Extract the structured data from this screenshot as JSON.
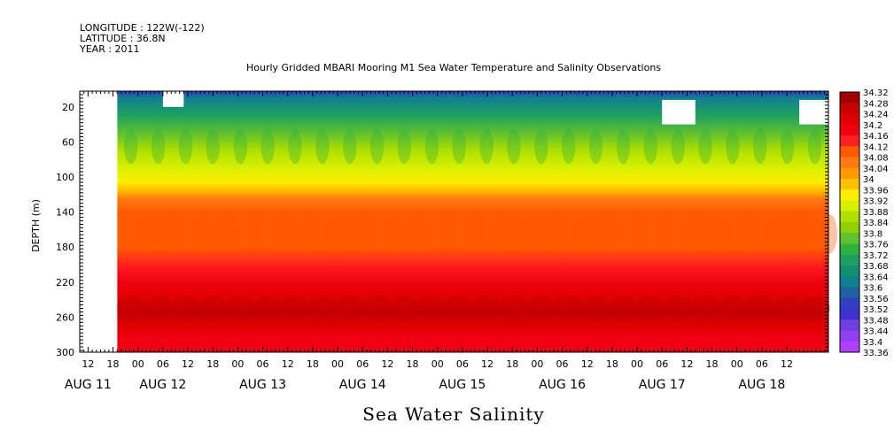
{
  "header": {
    "longitude": "LONGITUDE : 122W(-122)",
    "latitude": "LATITUDE : 36.8N",
    "year": "YEAR : 2011",
    "title": "Hourly Gridded MBARI Mooring M1 Sea Water Temperature and Salinity Observations"
  },
  "footer_title": "Sea Water Salinity",
  "chart_data": {
    "type": "heatmap",
    "title": "Hourly Gridded MBARI Mooring M1 Sea Water Temperature and Salinity Observations",
    "subtitle": "Sea Water Salinity",
    "ylabel": "DEPTH (m)",
    "y_reversed": true,
    "ylim": [
      300,
      2
    ],
    "y_ticks": [
      20,
      60,
      100,
      140,
      180,
      220,
      260,
      300
    ],
    "xlim_hours": [
      10,
      190
    ],
    "data_start_hour": 19,
    "x_ticks": [
      {
        "hour": 12,
        "label": "12"
      },
      {
        "hour": 18,
        "label": "18"
      },
      {
        "hour": 24,
        "label": "00"
      },
      {
        "hour": 30,
        "label": "06"
      },
      {
        "hour": 36,
        "label": "12"
      },
      {
        "hour": 42,
        "label": "18"
      },
      {
        "hour": 48,
        "label": "00"
      },
      {
        "hour": 54,
        "label": "06"
      },
      {
        "hour": 60,
        "label": "12"
      },
      {
        "hour": 66,
        "label": "18"
      },
      {
        "hour": 72,
        "label": "00"
      },
      {
        "hour": 78,
        "label": "06"
      },
      {
        "hour": 84,
        "label": "12"
      },
      {
        "hour": 90,
        "label": "18"
      },
      {
        "hour": 96,
        "label": "00"
      },
      {
        "hour": 102,
        "label": "06"
      },
      {
        "hour": 108,
        "label": "12"
      },
      {
        "hour": 114,
        "label": "18"
      },
      {
        "hour": 120,
        "label": "00"
      },
      {
        "hour": 126,
        "label": "06"
      },
      {
        "hour": 132,
        "label": "12"
      },
      {
        "hour": 138,
        "label": "18"
      },
      {
        "hour": 144,
        "label": "00"
      },
      {
        "hour": 150,
        "label": "06"
      },
      {
        "hour": 156,
        "label": "12"
      },
      {
        "hour": 162,
        "label": "18"
      },
      {
        "hour": 168,
        "label": "00"
      },
      {
        "hour": 174,
        "label": "06"
      },
      {
        "hour": 180,
        "label": "12"
      }
    ],
    "date_labels": [
      {
        "hour": 12,
        "label": "AUG 11"
      },
      {
        "hour": 30,
        "label": "AUG 12"
      },
      {
        "hour": 54,
        "label": "AUG 13"
      },
      {
        "hour": 78,
        "label": "AUG 14"
      },
      {
        "hour": 102,
        "label": "AUG 15"
      },
      {
        "hour": 126,
        "label": "AUG 16"
      },
      {
        "hour": 150,
        "label": "AUG 17"
      },
      {
        "hour": 174,
        "label": "AUG 18"
      }
    ],
    "depth_profile": [
      {
        "depth": 2,
        "value": 33.56
      },
      {
        "depth": 10,
        "value": 33.62
      },
      {
        "depth": 30,
        "value": 33.7
      },
      {
        "depth": 50,
        "value": 33.78
      },
      {
        "depth": 70,
        "value": 33.85
      },
      {
        "depth": 90,
        "value": 33.9
      },
      {
        "depth": 105,
        "value": 33.95
      },
      {
        "depth": 115,
        "value": 34.0
      },
      {
        "depth": 125,
        "value": 34.05
      },
      {
        "depth": 140,
        "value": 34.09
      },
      {
        "depth": 180,
        "value": 34.12
      },
      {
        "depth": 200,
        "value": 34.15
      },
      {
        "depth": 220,
        "value": 34.19
      },
      {
        "depth": 240,
        "value": 34.23
      },
      {
        "depth": 255,
        "value": 34.25
      },
      {
        "depth": 270,
        "value": 34.22
      },
      {
        "depth": 285,
        "value": 34.19
      },
      {
        "depth": 300,
        "value": 34.17
      }
    ],
    "missing_data_boxes": [
      {
        "x_from": 30,
        "x_to": 35,
        "depth_from": 2,
        "depth_to": 20
      },
      {
        "x_from": 150,
        "x_to": 158,
        "depth_from": 12,
        "depth_to": 40
      },
      {
        "x_from": 183,
        "x_to": 190,
        "depth_from": 12,
        "depth_to": 40
      }
    ],
    "colorbar": {
      "levels": [
        34.32,
        34.28,
        34.24,
        34.2,
        34.16,
        34.12,
        34.08,
        34.04,
        34,
        33.96,
        33.92,
        33.88,
        33.84,
        33.8,
        33.76,
        33.72,
        33.68,
        33.64,
        33.6,
        33.56,
        33.52,
        33.48,
        33.44,
        33.4,
        33.36
      ],
      "labels": [
        "34.32",
        "34.28",
        "34.24",
        "34.2",
        "34.16",
        "34.12",
        "34.08",
        "34.04",
        "34",
        "33.96",
        "33.92",
        "33.88",
        "33.84",
        "33.8",
        "33.76",
        "33.72",
        "33.68",
        "33.64",
        "33.6",
        "33.56",
        "33.52",
        "33.48",
        "33.44",
        "33.4",
        "33.36"
      ],
      "colors": [
        "#a00000",
        "#c80000",
        "#e00000",
        "#f00010",
        "#ff2020",
        "#ff5a00",
        "#ff7a10",
        "#ff9a00",
        "#ffc000",
        "#ffee00",
        "#d8f000",
        "#b0e000",
        "#90d000",
        "#60c030",
        "#30b040",
        "#20a060",
        "#109070",
        "#108090",
        "#2060a0",
        "#3040c0",
        "#4030d0",
        "#7040e0",
        "#9040f0",
        "#b040ff"
      ]
    }
  }
}
